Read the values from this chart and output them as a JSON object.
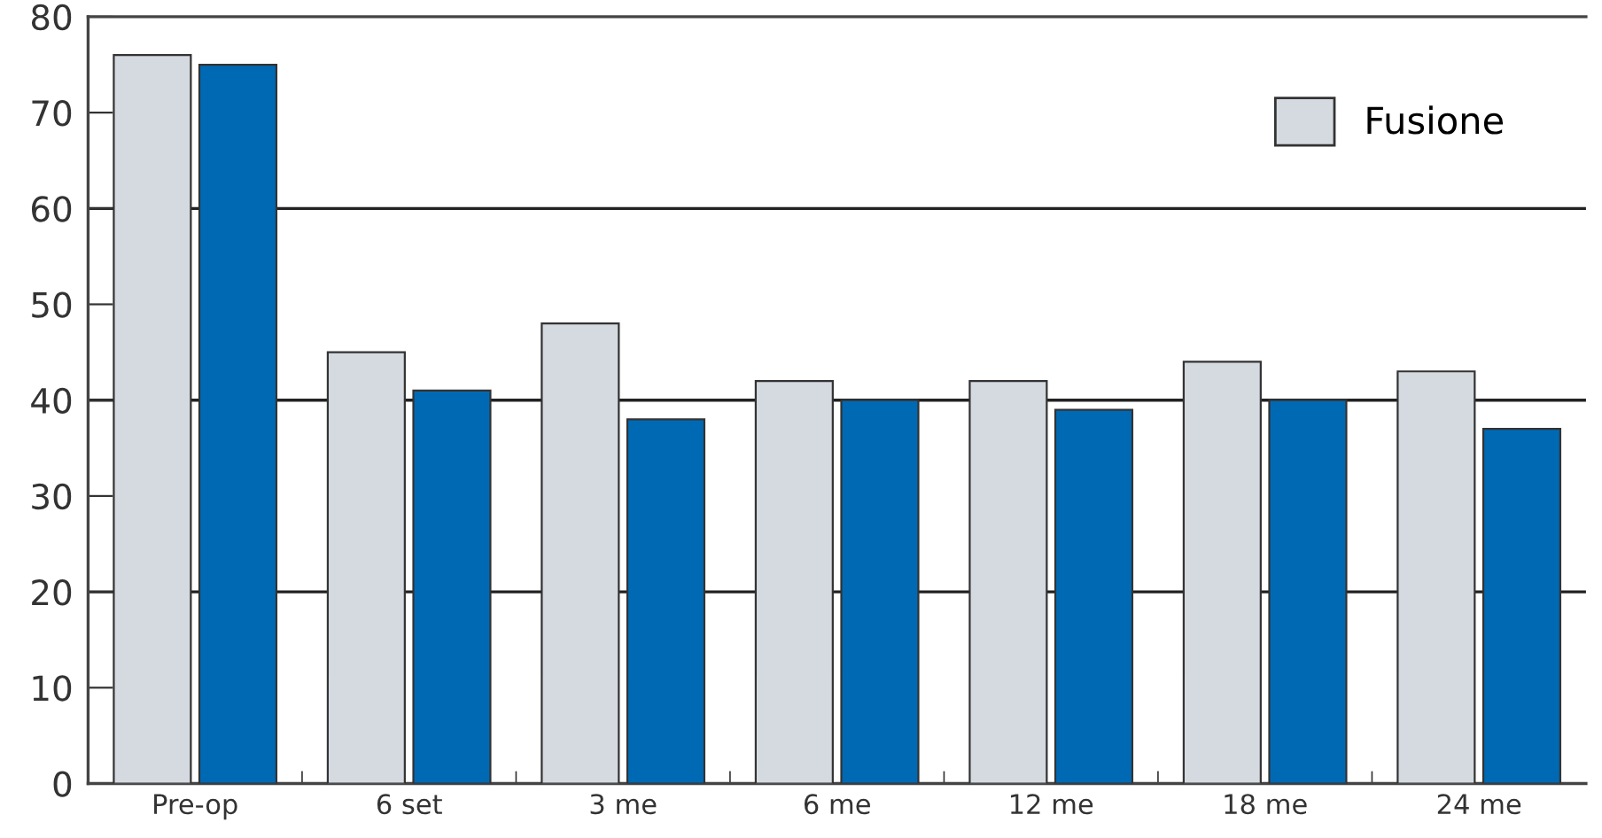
{
  "chart_data": {
    "type": "bar",
    "categories": [
      "Pre-op",
      "6 set",
      "3 me",
      "6 me",
      "12 me",
      "18 me",
      "24 me"
    ],
    "series": [
      {
        "name": "Fusione",
        "color": "#d5dae1",
        "values": [
          76,
          45,
          48,
          42,
          42,
          44,
          43
        ]
      },
      {
        "color": "#0069b4",
        "values": [
          75,
          41,
          38,
          40,
          39,
          40,
          37
        ]
      }
    ],
    "ylim": [
      0,
      80
    ],
    "yticks": [
      0,
      10,
      20,
      30,
      40,
      50,
      60,
      70,
      80
    ],
    "ref_lines": [
      {
        "axis": "y",
        "value": 20,
        "color": "#222222"
      },
      {
        "axis": "y",
        "value": 40,
        "color": "#222222"
      },
      {
        "axis": "y",
        "value": 60,
        "color": "#222222"
      }
    ],
    "legend": "top right"
  }
}
